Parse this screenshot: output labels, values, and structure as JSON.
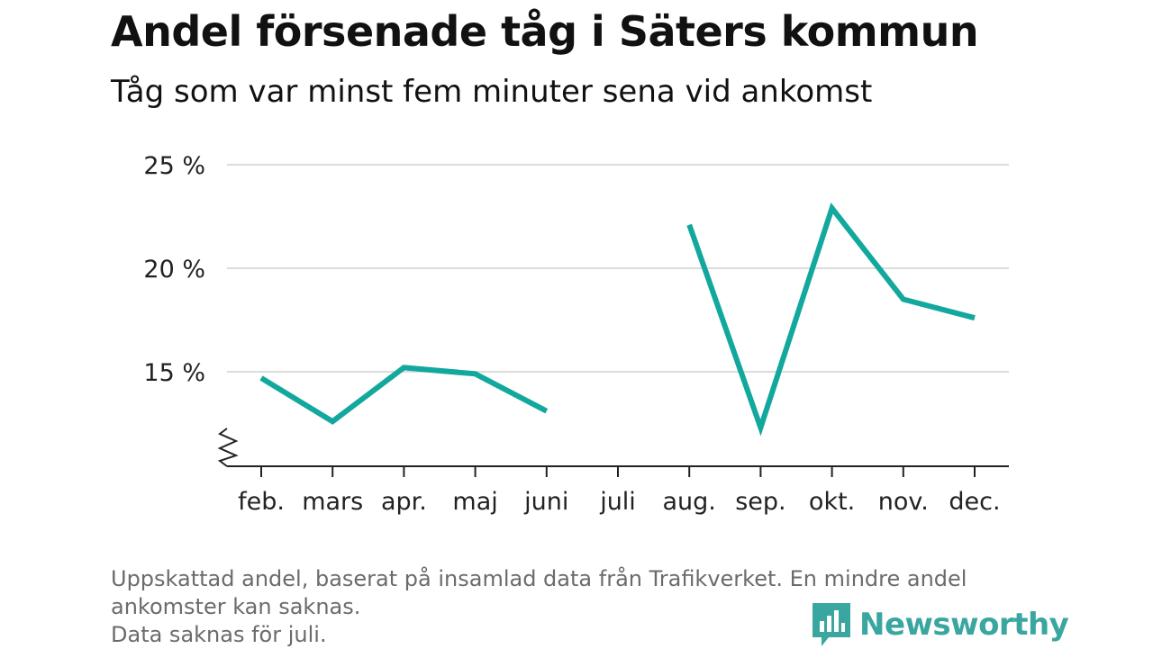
{
  "header": {
    "title": "Andel försenade tåg i Säters kommun",
    "subtitle": "Tåg som var minst fem minuter sena vid ankomst"
  },
  "chart_data": {
    "type": "line",
    "categories": [
      "feb.",
      "mars",
      "apr.",
      "maj",
      "juni",
      "juli",
      "aug.",
      "sep.",
      "okt.",
      "nov.",
      "dec."
    ],
    "series": [
      {
        "values": [
          14.7,
          12.6,
          15.2,
          14.9,
          13.1,
          null,
          22.1,
          12.3,
          22.9,
          18.5,
          17.6
        ],
        "color": "#12a89d"
      }
    ],
    "yticks": [
      15,
      20,
      25
    ],
    "ytick_labels": [
      "15 %",
      "20 %",
      "25 %"
    ],
    "ylim": [
      10.5,
      25
    ],
    "y_axis_break": true,
    "grid": true,
    "legend": "none"
  },
  "footer": {
    "note_lines": [
      "Uppskattad andel, baserat på insamlad data från Trafikverket. En mindre andel",
      "ankomster kan saknas.",
      "Data saknas för juli."
    ],
    "brand": "Newsworthy",
    "brand_icon": "newsworthy-logo-icon",
    "brand_color": "#3aa6a0"
  }
}
